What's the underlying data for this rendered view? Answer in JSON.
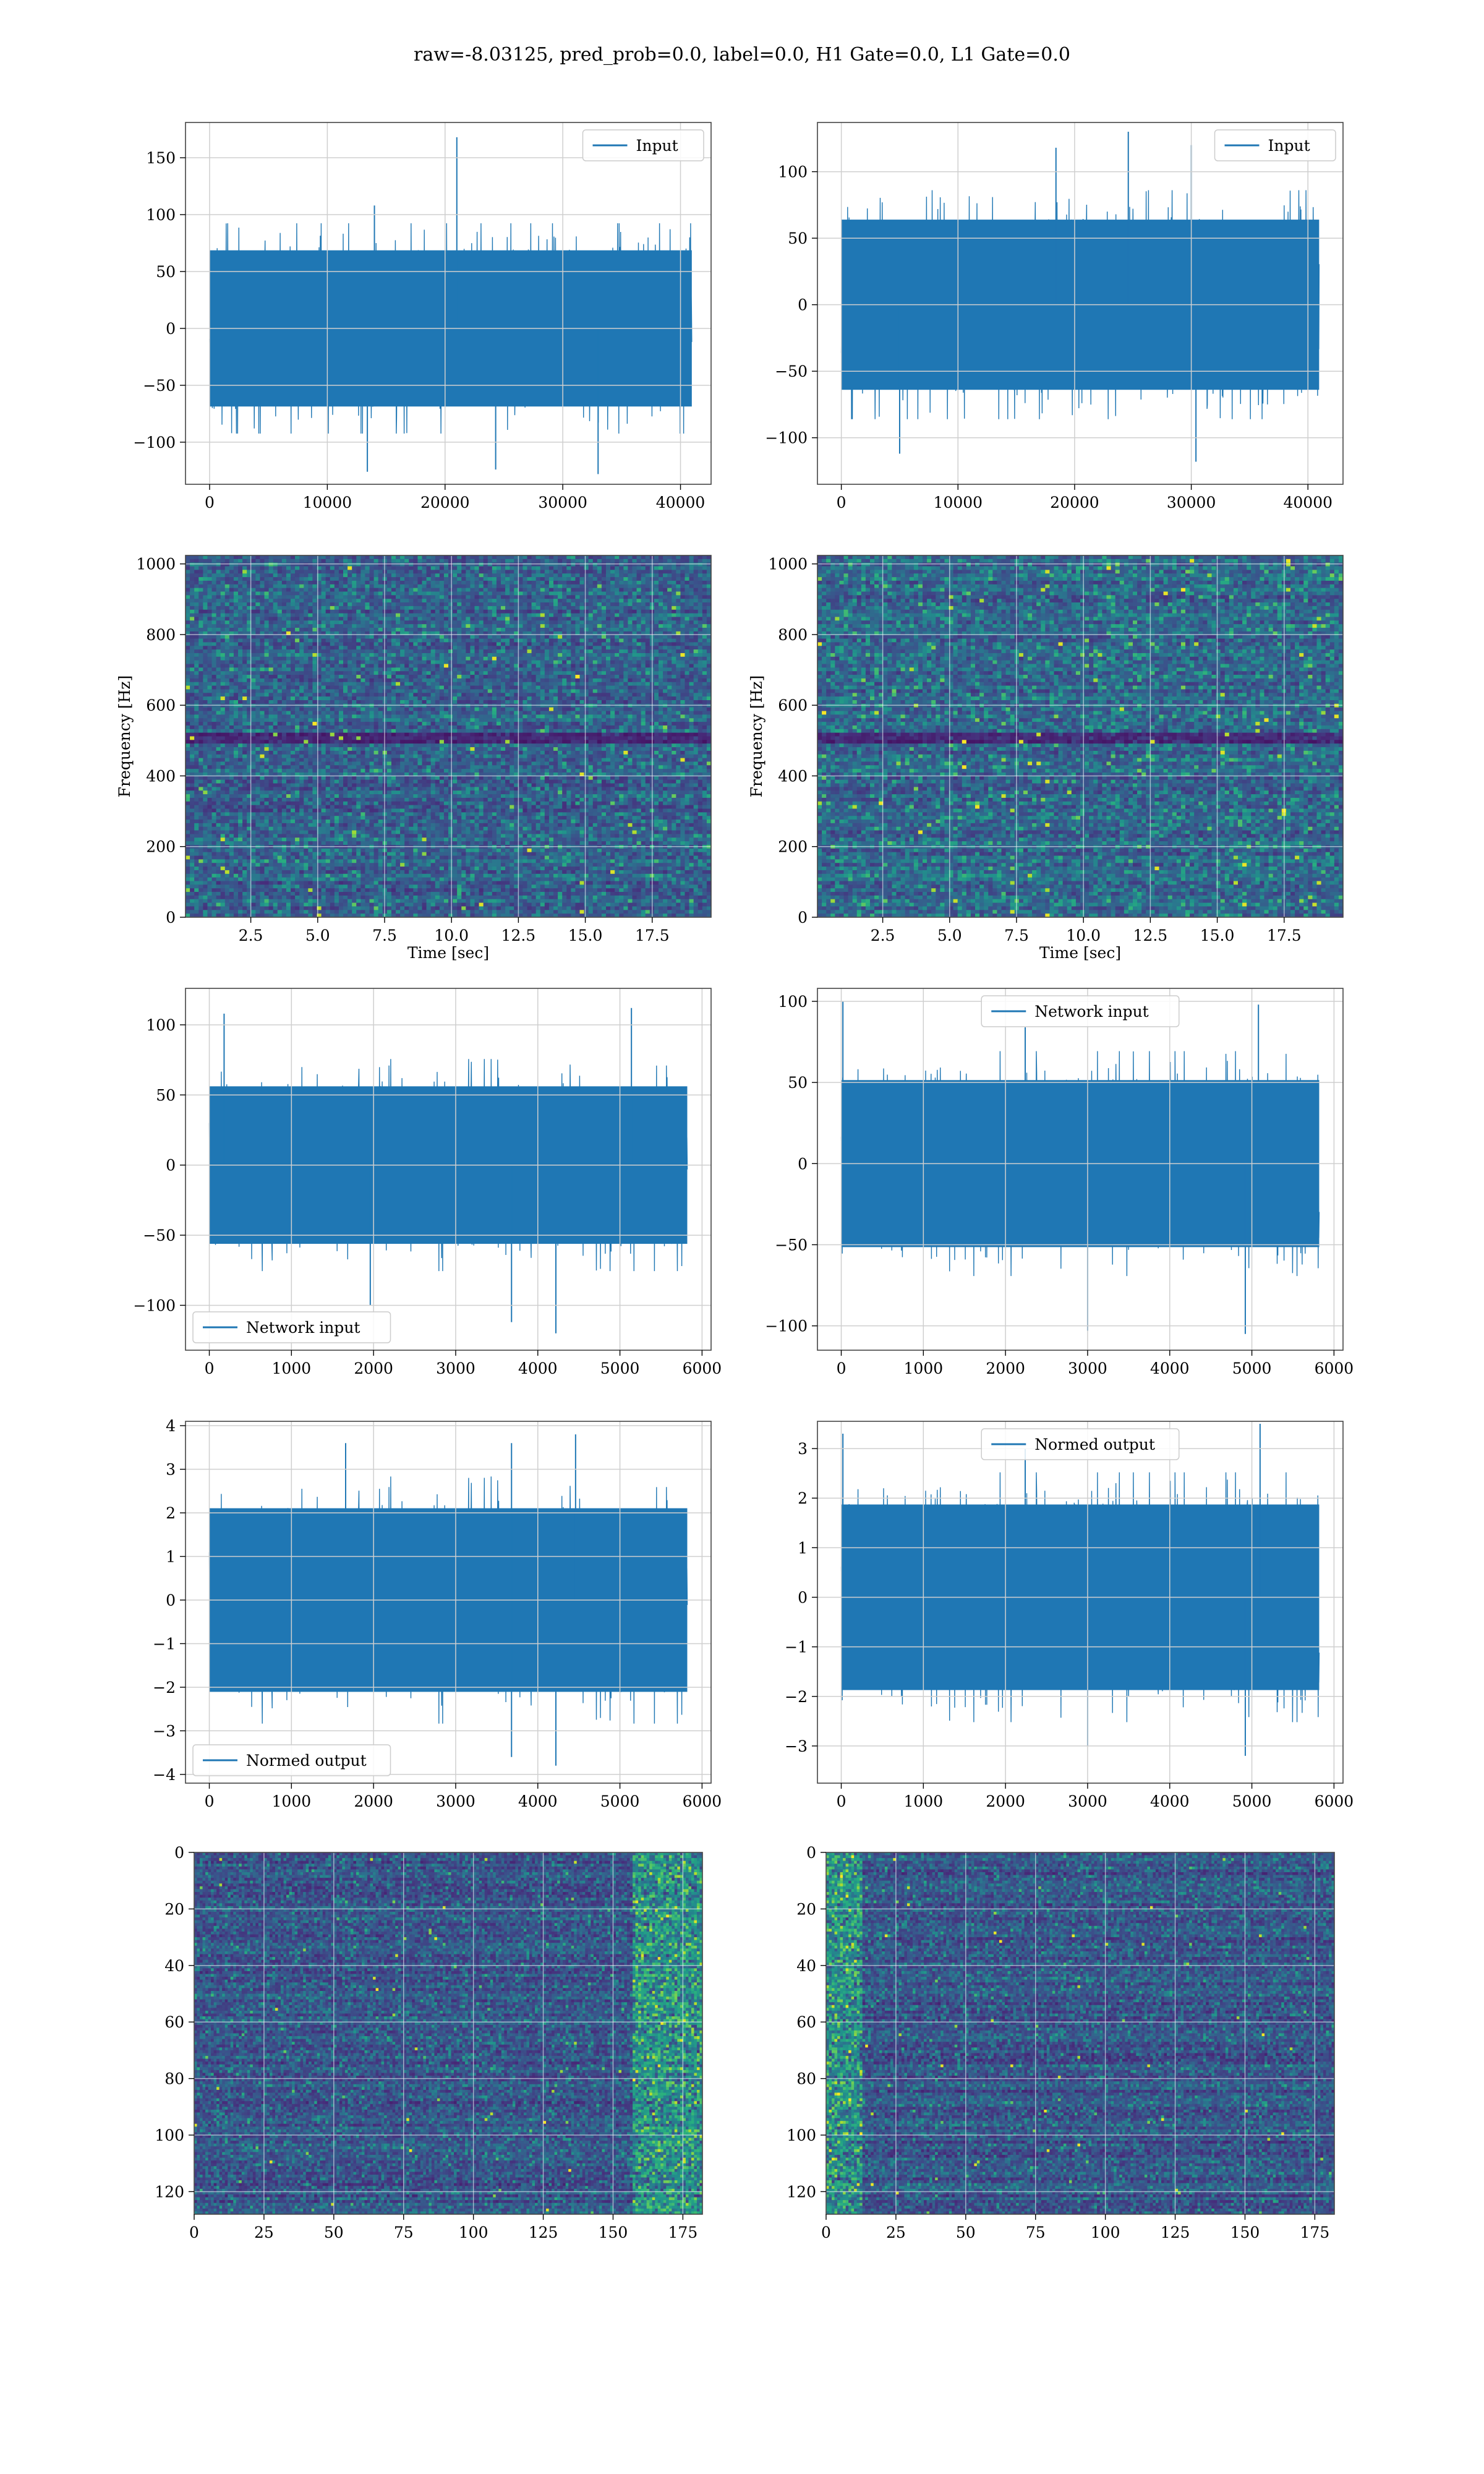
{
  "suptitle": "raw=-8.03125, pred_prob=0.0, label=0.0, H1 Gate=0.0, L1 Gate=0.0",
  "colors": {
    "line": "#1f77b4",
    "grid": "#cfcfcf",
    "spine": "#444444",
    "viridis": [
      "#440154",
      "#472d7b",
      "#3b528b",
      "#2c728e",
      "#21918c",
      "#28ae80",
      "#5ec962",
      "#addc30",
      "#fde725"
    ]
  },
  "chart_data": [
    {
      "id": "h1-input",
      "type": "line",
      "legend": "Input",
      "legend_loc": "upper right",
      "xlim": [
        -2048,
        42598
      ],
      "ylim": [
        -137,
        181
      ],
      "xticks": [
        0,
        10000,
        20000,
        30000,
        40000
      ],
      "yticks": [
        -100,
        -50,
        0,
        50,
        100,
        150
      ],
      "xlabel": "",
      "ylabel": "",
      "grid": true,
      "series": {
        "x_start": 0,
        "x_end": 40960,
        "points": 1600,
        "amplitude": 34,
        "envelope_max": 88,
        "spikes": [
          [
            21000,
            168
          ],
          [
            24300,
            -124
          ],
          [
            33000,
            -128
          ],
          [
            14000,
            108
          ],
          [
            13400,
            -126
          ]
        ],
        "seed": 11
      }
    },
    {
      "id": "l1-input",
      "type": "line",
      "legend": "Input",
      "legend_loc": "upper right",
      "xlim": [
        -2048,
        43008
      ],
      "ylim": [
        -135,
        137
      ],
      "xticks": [
        0,
        10000,
        20000,
        30000,
        40000
      ],
      "yticks": [
        -100,
        -50,
        0,
        50,
        100
      ],
      "xlabel": "",
      "ylabel": "",
      "grid": true,
      "series": {
        "x_start": 0,
        "x_end": 40960,
        "points": 1600,
        "amplitude": 30,
        "envelope_max": 82,
        "spikes": [
          [
            24600,
            130
          ],
          [
            30400,
            -118
          ],
          [
            30000,
            120
          ],
          [
            5000,
            -112
          ],
          [
            18400,
            118
          ]
        ],
        "seed": 23
      }
    },
    {
      "id": "h1-spectrogram",
      "type": "heatmap",
      "xlim": [
        0.06,
        19.7
      ],
      "ylim": [
        0,
        1024
      ],
      "xticks": [
        2.5,
        5.0,
        7.5,
        10.0,
        12.5,
        15.0,
        17.5
      ],
      "yticks": [
        0,
        200,
        400,
        600,
        800,
        1000
      ],
      "xlabel": "Time [sec]",
      "ylabel": "Frequency [Hz]",
      "grid": true,
      "cells": {
        "cols": 120,
        "rows": 100,
        "base": 0.18,
        "spread": 0.22,
        "hot_rate": 0.006,
        "dark_band_y": [
          490,
          520
        ],
        "seed": 37
      }
    },
    {
      "id": "l1-spectrogram",
      "type": "heatmap",
      "xlim": [
        0.06,
        19.7
      ],
      "ylim": [
        0,
        1024
      ],
      "xticks": [
        2.5,
        5.0,
        7.5,
        10.0,
        12.5,
        15.0,
        17.5
      ],
      "yticks": [
        0,
        200,
        400,
        600,
        800,
        1000
      ],
      "xlabel": "Time [sec]",
      "ylabel": "Frequency [Hz]",
      "grid": true,
      "cells": {
        "cols": 120,
        "rows": 100,
        "base": 0.2,
        "spread": 0.24,
        "hot_rate": 0.008,
        "dark_band_y": [
          490,
          520
        ],
        "seed": 41
      }
    },
    {
      "id": "h1-network-input",
      "type": "line",
      "legend": "Network input",
      "legend_loc": "lower left",
      "xlim": [
        -290,
        6110
      ],
      "ylim": [
        -132,
        126
      ],
      "xticks": [
        0,
        1000,
        2000,
        3000,
        4000,
        5000,
        6000
      ],
      "yticks": [
        -100,
        -50,
        0,
        50,
        100
      ],
      "xlabel": "",
      "ylabel": "",
      "grid": true,
      "series": {
        "x_start": 0,
        "x_end": 5820,
        "points": 1400,
        "amplitude": 26,
        "envelope_max": 72,
        "spikes": [
          [
            4220,
            -120
          ],
          [
            3680,
            -112
          ],
          [
            5140,
            112
          ],
          [
            180,
            108
          ],
          [
            1960,
            -100
          ]
        ],
        "seed": 53
      }
    },
    {
      "id": "l1-network-input",
      "type": "line",
      "legend": "Network input",
      "legend_loc": "upper center",
      "xlim": [
        -290,
        6110
      ],
      "ylim": [
        -115,
        108
      ],
      "xticks": [
        0,
        1000,
        2000,
        3000,
        4000,
        5000,
        6000
      ],
      "yticks": [
        -100,
        -50,
        0,
        50,
        100
      ],
      "xlabel": "",
      "ylabel": "",
      "grid": true,
      "series": {
        "x_start": 0,
        "x_end": 5820,
        "points": 1400,
        "amplitude": 24,
        "envelope_max": 66,
        "spikes": [
          [
            4920,
            -105
          ],
          [
            3000,
            -103
          ],
          [
            5080,
            98
          ],
          [
            20,
            100
          ],
          [
            2240,
            84
          ]
        ],
        "seed": 61
      }
    },
    {
      "id": "h1-normed-output",
      "type": "line",
      "legend": "Normed output",
      "legend_loc": "lower left",
      "xlim": [
        -290,
        6110
      ],
      "ylim": [
        -4.2,
        4.1
      ],
      "xticks": [
        0,
        1000,
        2000,
        3000,
        4000,
        5000,
        6000
      ],
      "yticks": [
        -4,
        -3,
        -2,
        -1,
        0,
        1,
        2,
        3,
        4
      ],
      "xlabel": "",
      "ylabel": "",
      "grid": true,
      "series": {
        "x_start": 0,
        "x_end": 5820,
        "points": 1400,
        "amplitude": 0.95,
        "envelope_max": 2.7,
        "spikes": [
          [
            4220,
            -3.8
          ],
          [
            3680,
            -3.6
          ],
          [
            4460,
            3.8
          ],
          [
            3680,
            3.6
          ],
          [
            1660,
            3.6
          ]
        ],
        "seed": 53
      }
    },
    {
      "id": "l1-normed-output",
      "type": "line",
      "legend": "Normed output",
      "legend_loc": "upper center",
      "xlim": [
        -290,
        6110
      ],
      "ylim": [
        -3.75,
        3.55
      ],
      "xticks": [
        0,
        1000,
        2000,
        3000,
        4000,
        5000,
        6000
      ],
      "yticks": [
        -3,
        -2,
        -1,
        0,
        1,
        2,
        3
      ],
      "xlabel": "",
      "ylabel": "",
      "grid": true,
      "series": {
        "x_start": 0,
        "x_end": 5820,
        "points": 1400,
        "amplitude": 0.9,
        "envelope_max": 2.4,
        "spikes": [
          [
            4920,
            -3.2
          ],
          [
            3000,
            -3.0
          ],
          [
            5100,
            3.5
          ],
          [
            20,
            3.3
          ],
          [
            2240,
            3.0
          ]
        ],
        "seed": 61
      }
    },
    {
      "id": "h1-feature-map",
      "type": "heatmap",
      "xlim": [
        0,
        182
      ],
      "ylim": [
        128,
        0
      ],
      "xticks": [
        0,
        25,
        50,
        75,
        100,
        125,
        150,
        175
      ],
      "yticks": [
        0,
        20,
        40,
        60,
        80,
        100,
        120
      ],
      "xlabel": "",
      "ylabel": "",
      "grid": true,
      "cells": {
        "cols": 182,
        "rows": 128,
        "base": 0.15,
        "spread": 0.2,
        "hot_rate": 0.002,
        "edge_hot": "right",
        "seed": 71
      }
    },
    {
      "id": "l1-feature-map",
      "type": "heatmap",
      "xlim": [
        0,
        182
      ],
      "ylim": [
        128,
        0
      ],
      "xticks": [
        0,
        25,
        50,
        75,
        100,
        125,
        150,
        175
      ],
      "yticks": [
        0,
        20,
        40,
        60,
        80,
        100,
        120
      ],
      "xlabel": "",
      "ylabel": "",
      "grid": true,
      "cells": {
        "cols": 182,
        "rows": 128,
        "base": 0.15,
        "spread": 0.2,
        "hot_rate": 0.002,
        "edge_hot": "left",
        "seed": 83
      }
    }
  ]
}
